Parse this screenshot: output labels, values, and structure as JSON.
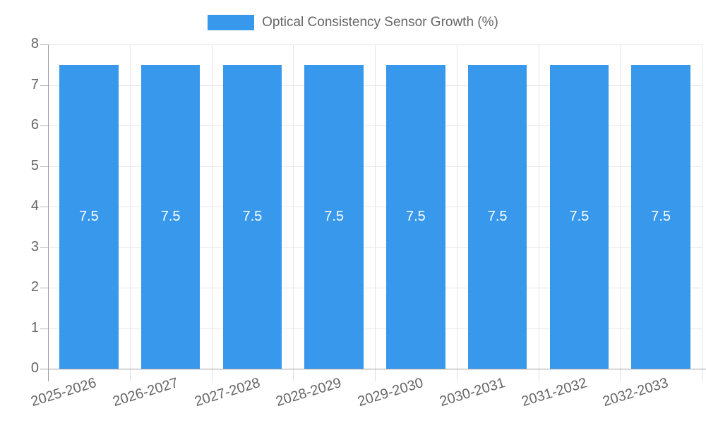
{
  "chart_data": {
    "type": "bar",
    "title": "Optical Consistency Sensor Growth (%)",
    "legend": {
      "position": "top",
      "items": [
        {
          "label": "Optical Consistency Sensor Growth (%)",
          "color": "#3898EC"
        }
      ]
    },
    "categories": [
      "2025-2026",
      "2026-2027",
      "2027-2028",
      "2028-2029",
      "2029-2030",
      "2030-2031",
      "2031-2032",
      "2032-2033"
    ],
    "series": [
      {
        "name": "Optical Consistency Sensor Growth (%)",
        "color": "#3898EC",
        "values": [
          7.5,
          7.5,
          7.5,
          7.5,
          7.5,
          7.5,
          7.5,
          7.5
        ]
      }
    ],
    "value_labels": [
      "7.5",
      "7.5",
      "7.5",
      "7.5",
      "7.5",
      "7.5",
      "7.5",
      "7.5"
    ],
    "xlabel": "",
    "ylabel": "",
    "ylim": [
      0,
      8
    ],
    "yticks": [
      0,
      1,
      2,
      3,
      4,
      5,
      6,
      7,
      8
    ],
    "grid": true,
    "bar_percentage": 0.72,
    "colors": {
      "bar": "#3898EC",
      "grid": "#E6E6E6",
      "axis": "#9C9C9C",
      "minor_tick": "#B4B4B4",
      "x_tick": "#DFDFDF",
      "tick_text": "#666666",
      "value_text": "#FFFFFF"
    }
  }
}
